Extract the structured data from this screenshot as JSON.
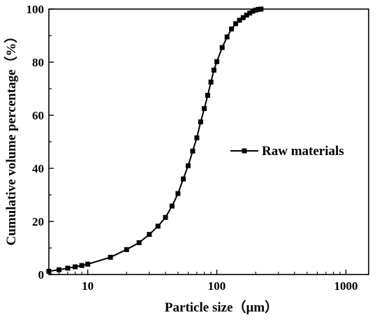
{
  "chart_data": {
    "type": "line",
    "xscale": "log",
    "xlim": [
      5,
      1500
    ],
    "ylim": [
      0,
      100
    ],
    "xlabel": "Particle size（μm）",
    "ylabel": "Cumulative volume percentage（%）",
    "xticks": [
      10,
      100,
      1000
    ],
    "xtick_labels": [
      "10",
      "100",
      "1000"
    ],
    "yticks": [
      0,
      20,
      40,
      60,
      80,
      100
    ],
    "ytick_labels": [
      "0",
      "20",
      "40",
      "60",
      "80",
      "100"
    ],
    "legend_position": "right-middle",
    "grid": false,
    "series": [
      {
        "name": "Raw materials",
        "color": "#000000",
        "marker": "square",
        "x": [
          5,
          6,
          7,
          8,
          9,
          10,
          15,
          20,
          25,
          30,
          35,
          40,
          45,
          50,
          55,
          60,
          65,
          70,
          75,
          80,
          85,
          90,
          95,
          100,
          110,
          120,
          130,
          140,
          150,
          160,
          170,
          180,
          190,
          200,
          210,
          220
        ],
        "y": [
          1.2,
          1.8,
          2.4,
          2.9,
          3.4,
          3.9,
          6.5,
          9.4,
          12.0,
          15.1,
          18.2,
          21.5,
          25.8,
          30.5,
          36.0,
          41.0,
          46.5,
          51.5,
          57.5,
          62.5,
          67.5,
          72.5,
          77.0,
          80.2,
          85.5,
          89.5,
          92.5,
          94.5,
          95.8,
          96.8,
          97.7,
          98.5,
          99.2,
          99.6,
          99.9,
          100
        ]
      }
    ]
  }
}
